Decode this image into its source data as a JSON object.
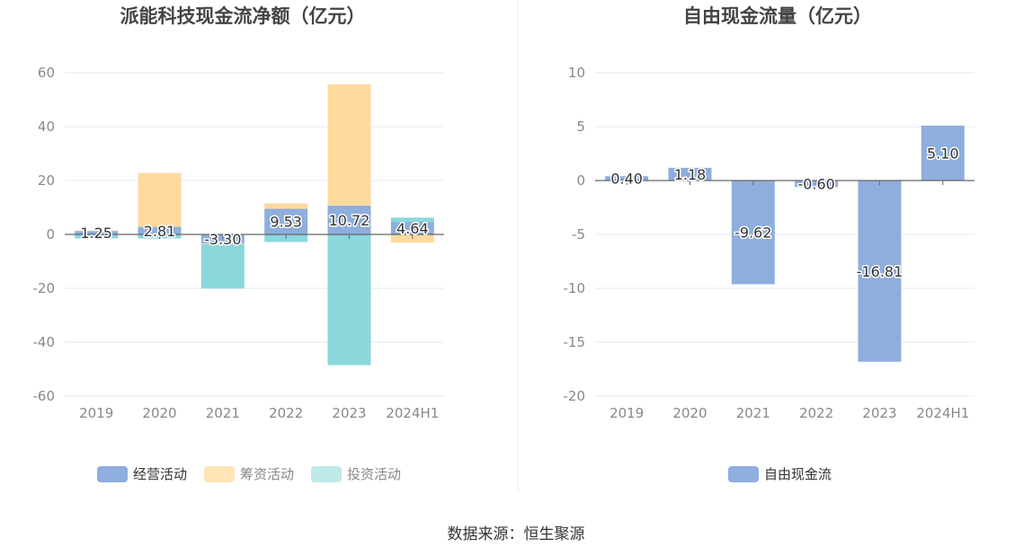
{
  "colors": {
    "operating": "#8eaedd",
    "financing": "#ffd99d",
    "investing": "#8ad7dc",
    "fcf": "#8eaedd",
    "grid": "#e6e9f0",
    "axis": "#666666",
    "tick_text": "#888888",
    "title": "#444444"
  },
  "footer": {
    "source": "数据来源：恒生聚源"
  },
  "chart_data": [
    {
      "type": "bar",
      "stacked": true,
      "title": "派能科技现金流净额（亿元）",
      "categories": [
        "2019",
        "2020",
        "2021",
        "2022",
        "2023",
        "2024H1"
      ],
      "ylim": [
        -60,
        60
      ],
      "yticks": [
        60,
        40,
        20,
        0,
        -20,
        -40,
        -60
      ],
      "grid": true,
      "legend_position": "bottom",
      "series": [
        {
          "name": "经营活动",
          "color_key": "operating",
          "values": [
            1.25,
            2.81,
            -3.3,
            9.53,
            10.72,
            4.64
          ],
          "labels": [
            "1.25",
            "2.81",
            "-3.30",
            "9.53",
            "10.72",
            "4.64"
          ]
        },
        {
          "name": "筹资活动",
          "color_key": "financing",
          "values": [
            0.3,
            20.0,
            -0.3,
            2.0,
            45.0,
            -3.0
          ]
        },
        {
          "name": "投资活动",
          "color_key": "investing",
          "values": [
            -1.5,
            -1.5,
            -16.5,
            -2.8,
            -48.5,
            1.6
          ]
        }
      ]
    },
    {
      "type": "bar",
      "title": "自由现金流量（亿元）",
      "categories": [
        "2019",
        "2020",
        "2021",
        "2022",
        "2023",
        "2024H1"
      ],
      "ylim": [
        -20,
        10
      ],
      "yticks": [
        10,
        5,
        0,
        -5,
        -10,
        -15,
        -20
      ],
      "grid": true,
      "legend_position": "bottom",
      "series": [
        {
          "name": "自由现金流",
          "color_key": "fcf",
          "values": [
            0.4,
            1.18,
            -9.62,
            -0.6,
            -16.81,
            5.1
          ],
          "labels": [
            "0.40",
            "1.18",
            "-9.62",
            "-0.60",
            "-16.81",
            "5.10"
          ]
        }
      ]
    }
  ]
}
